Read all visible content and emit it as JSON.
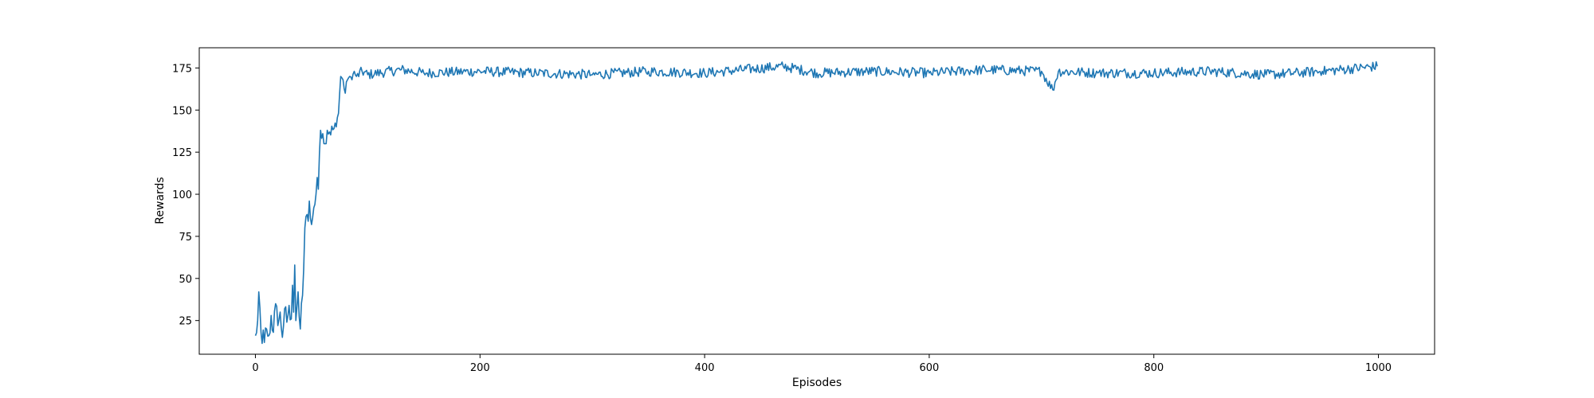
{
  "chart_data": {
    "type": "line",
    "title": "",
    "xlabel": "Episodes",
    "ylabel": "Rewards",
    "xlim": [
      -50,
      1050
    ],
    "ylim": [
      5,
      187
    ],
    "xticks": [
      0,
      200,
      400,
      600,
      800,
      1000
    ],
    "yticks": [
      25,
      50,
      75,
      100,
      125,
      150,
      175
    ],
    "grid": false,
    "line_color": "#1f77b4",
    "series": [
      {
        "keypoints": [
          [
            0,
            16
          ],
          [
            2,
            25
          ],
          [
            3,
            42
          ],
          [
            5,
            18
          ],
          [
            8,
            12
          ],
          [
            10,
            20
          ],
          [
            12,
            16
          ],
          [
            14,
            28
          ],
          [
            16,
            18
          ],
          [
            18,
            35
          ],
          [
            20,
            22
          ],
          [
            22,
            30
          ],
          [
            24,
            15
          ],
          [
            26,
            32
          ],
          [
            28,
            24
          ],
          [
            30,
            34
          ],
          [
            32,
            26
          ],
          [
            33,
            46
          ],
          [
            34,
            30
          ],
          [
            35,
            58
          ],
          [
            36,
            25
          ],
          [
            38,
            42
          ],
          [
            40,
            20
          ],
          [
            42,
            40
          ],
          [
            43,
            55
          ],
          [
            44,
            80
          ],
          [
            46,
            88
          ],
          [
            47,
            84
          ],
          [
            48,
            96
          ],
          [
            50,
            82
          ],
          [
            52,
            92
          ],
          [
            54,
            100
          ],
          [
            55,
            110
          ],
          [
            56,
            103
          ],
          [
            58,
            138
          ],
          [
            60,
            136
          ],
          [
            62,
            130
          ],
          [
            64,
            138
          ],
          [
            66,
            137
          ],
          [
            70,
            139
          ],
          [
            72,
            140
          ],
          [
            74,
            148
          ],
          [
            76,
            170
          ],
          [
            78,
            168
          ],
          [
            80,
            160
          ],
          [
            82,
            168
          ],
          [
            84,
            170
          ],
          [
            86,
            168
          ],
          [
            88,
            173
          ],
          [
            90,
            170
          ],
          [
            95,
            173
          ],
          [
            100,
            171
          ],
          [
            130,
            174
          ],
          [
            150,
            172
          ],
          [
            200,
            173
          ],
          [
            250,
            172
          ],
          [
            300,
            171
          ],
          [
            350,
            173
          ],
          [
            400,
            172
          ],
          [
            470,
            176
          ],
          [
            500,
            172
          ],
          [
            550,
            173
          ],
          [
            600,
            172
          ],
          [
            650,
            174
          ],
          [
            700,
            173
          ],
          [
            710,
            162
          ],
          [
            715,
            173
          ],
          [
            750,
            172
          ],
          [
            800,
            172
          ],
          [
            850,
            173
          ],
          [
            900,
            171
          ],
          [
            950,
            173
          ],
          [
            999,
            176
          ]
        ],
        "stable_level": 173
      }
    ]
  }
}
